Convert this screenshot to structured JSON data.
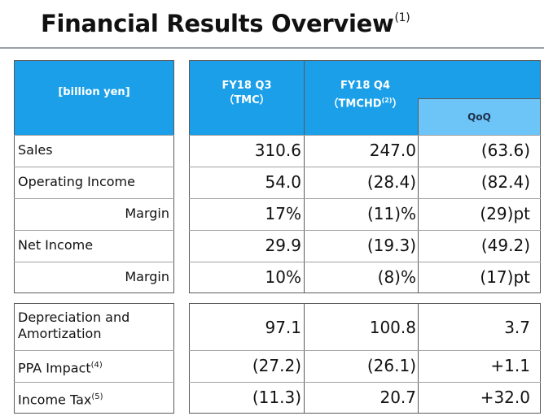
{
  "title": {
    "text": "Financial Results Overview",
    "footnote": "(1)"
  },
  "header": {
    "unit": "[billion yen]",
    "col1_line1": "FY18 Q3",
    "col1_line2": "（TMC）",
    "col2_line1": "FY18 Q4",
    "col2_line2_prefix": "（TMCHD",
    "col2_line2_sup": "(2)",
    "col2_line2_suffix": "）",
    "qoq": "QoQ"
  },
  "rows": [
    {
      "label": "Sales",
      "q3": "310.6",
      "q4": "247.0",
      "qoq": "(63.6)"
    },
    {
      "label": "Operating Income",
      "q3": "54.0",
      "q4": "(28.4)",
      "qoq": "(82.4)"
    },
    {
      "label": "Margin",
      "q3": "17%",
      "q4": "(11)%",
      "qoq": "(29)pt"
    },
    {
      "label": "Net Income",
      "q3": "29.9",
      "q4": "(19.3)",
      "qoq": "(49.2)"
    },
    {
      "label": "Margin",
      "q3": "10%",
      "q4": "(8)%",
      "qoq": "(17)pt"
    }
  ],
  "rows2": [
    {
      "label_line1": "Depreciation and",
      "label_line2": "Amortization",
      "q3": "97.1",
      "q4": "100.8",
      "qoq": "3.7"
    },
    {
      "label": "PPA Impact",
      "label_sup": "(4)",
      "q3": "(27.2)",
      "q4": "(26.1)",
      "qoq": "+1.1"
    },
    {
      "label": "Income Tax",
      "label_sup": "(5)",
      "q3": "(11.3)",
      "q4": "20.7",
      "qoq": "+32.0"
    }
  ]
}
